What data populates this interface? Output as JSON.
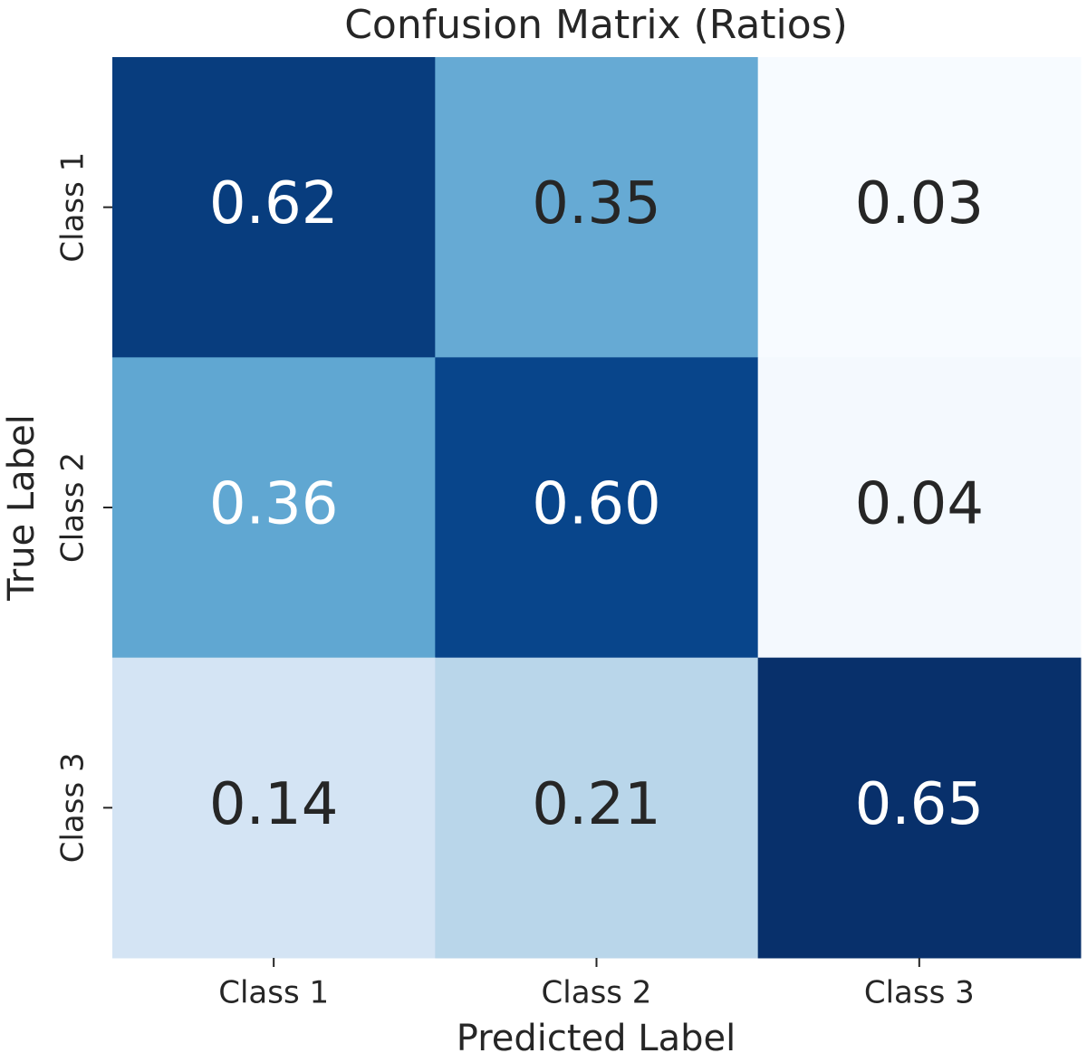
{
  "chart_data": {
    "type": "heatmap",
    "title": "Confusion Matrix (Ratios)",
    "xlabel": "Predicted Label",
    "ylabel": "True Label",
    "x_categories": [
      "Class 1",
      "Class 2",
      "Class 3"
    ],
    "y_categories": [
      "Class 1",
      "Class 2",
      "Class 3"
    ],
    "values": [
      [
        0.62,
        0.35,
        0.03
      ],
      [
        0.36,
        0.6,
        0.04
      ],
      [
        0.14,
        0.21,
        0.65
      ]
    ],
    "value_labels": [
      [
        "0.62",
        "0.35",
        "0.03"
      ],
      [
        "0.36",
        "0.60",
        "0.04"
      ],
      [
        "0.14",
        "0.21",
        "0.65"
      ]
    ],
    "colormap": "Blues"
  }
}
